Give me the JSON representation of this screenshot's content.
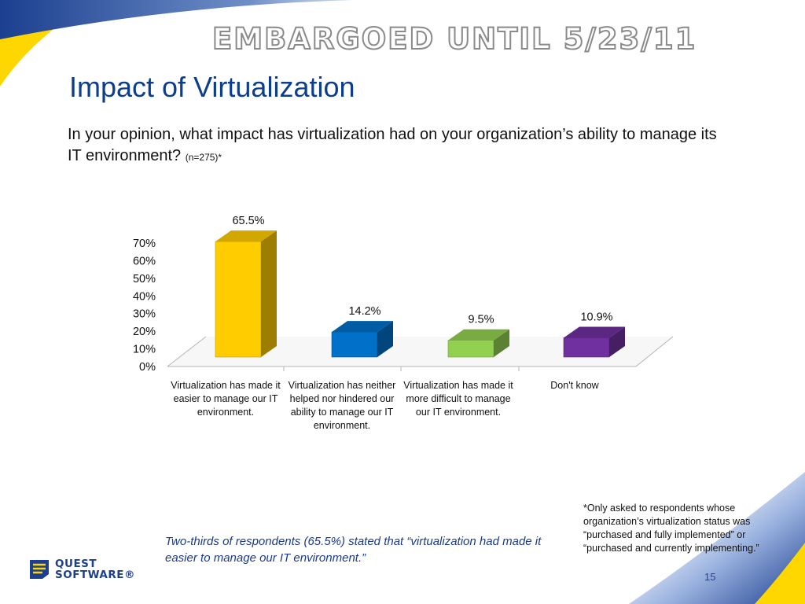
{
  "header": {
    "embargo": "EMBARGOED UNTIL  5/23/11"
  },
  "slide": {
    "title": "Impact of Virtualization",
    "question": "In your opinion, what impact has virtualization had on your organization’s ability to manage its IT environment?",
    "sample_note": "(n=275)*",
    "finding": "Two-thirds of respondents (65.5%) stated that “virtualization had made it easier to manage our IT environment.”",
    "footnote": "*Only asked to respondents whose organization’s virtualization status was “purchased and fully implemented” or “purchased and currently implementing.”",
    "page_number": "15"
  },
  "logo": {
    "line1": "QUEST",
    "line2": "SOFTWARE®"
  },
  "colors": {
    "title": "#0d3e8c",
    "bar_easier": "#ffcc00",
    "bar_neither": "#0070c9",
    "bar_harder": "#92d050",
    "bar_dontknow": "#7030a0"
  },
  "chart_data": {
    "type": "bar",
    "categories": [
      "Virtualization has made it easier to manage our IT environment.",
      "Virtualization has neither helped nor hindered our ability to manage our IT environment.",
      "Virtualization has made it more difficult to manage our IT environment.",
      "Don't know"
    ],
    "values": [
      65.5,
      14.2,
      9.5,
      10.9
    ],
    "data_labels": [
      "65.5%",
      "14.2%",
      "9.5%",
      "10.9%"
    ],
    "ylim": [
      0,
      70
    ],
    "yticks": [
      "0%",
      "10%",
      "20%",
      "30%",
      "40%",
      "50%",
      "60%",
      "70%"
    ],
    "colors": [
      "#ffcc00",
      "#0070c9",
      "#92d050",
      "#7030a0"
    ],
    "style": "3d-column",
    "legend": "none",
    "grid": false
  }
}
